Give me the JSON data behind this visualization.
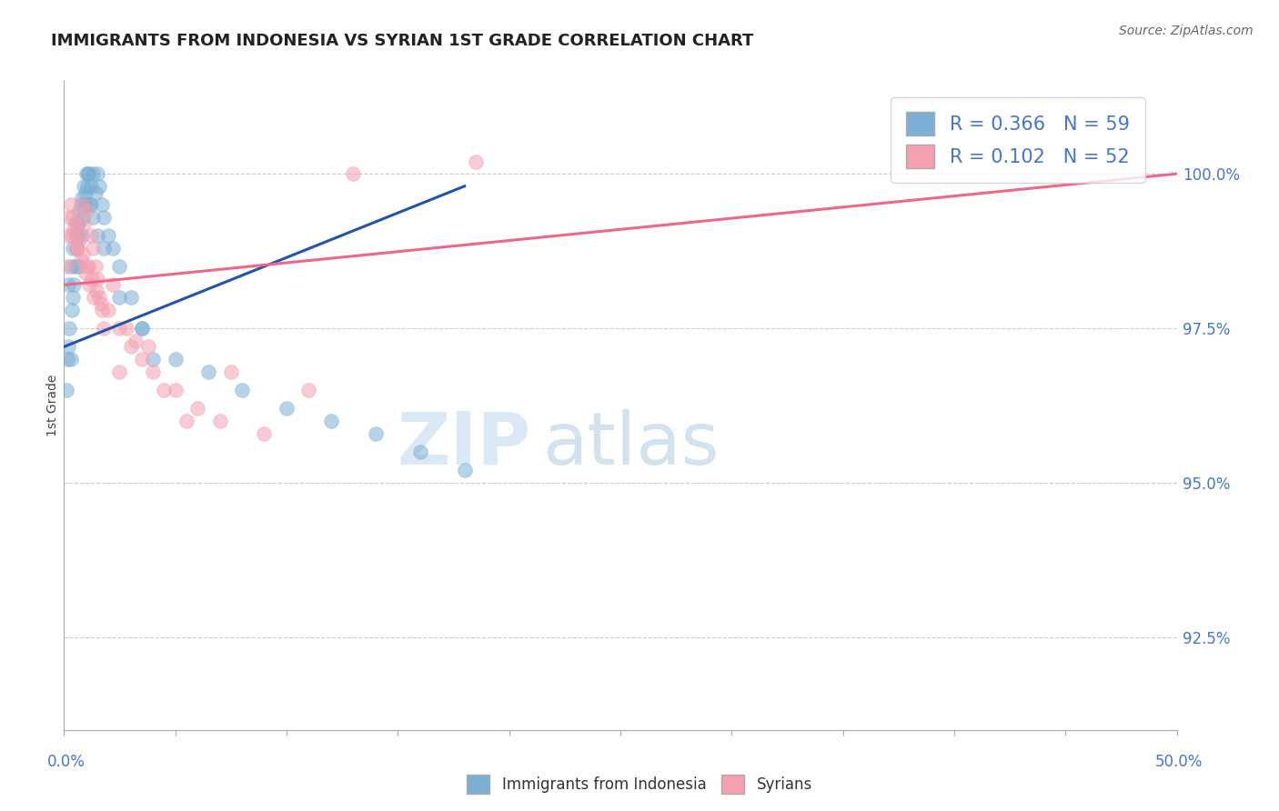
{
  "title": "IMMIGRANTS FROM INDONESIA VS SYRIAN 1ST GRADE CORRELATION CHART",
  "source": "Source: ZipAtlas.com",
  "ylabel": "1st Grade",
  "ylabel_right_values": [
    100.0,
    97.5,
    95.0,
    92.5
  ],
  "xmin": 0.0,
  "xmax": 50.0,
  "ymin": 91.0,
  "ymax": 101.5,
  "R_indonesia": 0.366,
  "N_indonesia": 59,
  "R_syrian": 0.102,
  "N_syrian": 52,
  "color_indonesia": "#7bafd4",
  "color_syrian": "#f4a0b0",
  "trendline_indonesia_color": "#2255aa",
  "trendline_syrian_color": "#ee6688",
  "watermark_zip": "ZIP",
  "watermark_atlas": "atlas",
  "indonesia_x": [
    0.1,
    0.15,
    0.2,
    0.25,
    0.3,
    0.35,
    0.4,
    0.45,
    0.5,
    0.55,
    0.6,
    0.65,
    0.7,
    0.75,
    0.8,
    0.85,
    0.9,
    0.95,
    1.0,
    1.05,
    1.1,
    1.15,
    1.2,
    1.3,
    1.4,
    1.5,
    1.6,
    1.7,
    1.8,
    2.0,
    2.2,
    2.5,
    3.0,
    3.5,
    4.0,
    0.2,
    0.3,
    0.4,
    0.5,
    0.6,
    0.7,
    0.8,
    0.9,
    1.0,
    1.1,
    1.2,
    1.3,
    1.5,
    1.8,
    2.5,
    3.5,
    5.0,
    6.5,
    8.0,
    10.0,
    12.0,
    14.0,
    16.0,
    18.0
  ],
  "indonesia_y": [
    96.5,
    97.0,
    97.2,
    97.5,
    97.0,
    97.8,
    98.0,
    98.2,
    98.5,
    98.8,
    99.0,
    99.2,
    98.5,
    99.5,
    99.0,
    99.3,
    99.5,
    99.7,
    99.5,
    99.8,
    100.0,
    99.5,
    99.8,
    100.0,
    99.7,
    100.0,
    99.8,
    99.5,
    99.3,
    99.0,
    98.8,
    98.5,
    98.0,
    97.5,
    97.0,
    98.2,
    98.5,
    98.8,
    99.0,
    99.2,
    99.4,
    99.6,
    99.8,
    100.0,
    100.0,
    99.5,
    99.3,
    99.0,
    98.8,
    98.0,
    97.5,
    97.0,
    96.8,
    96.5,
    96.2,
    96.0,
    95.8,
    95.5,
    95.2
  ],
  "syrian_x": [
    0.1,
    0.2,
    0.3,
    0.4,
    0.5,
    0.6,
    0.7,
    0.8,
    0.9,
    1.0,
    1.1,
    1.2,
    1.3,
    1.4,
    1.5,
    1.6,
    1.7,
    1.8,
    2.0,
    2.2,
    2.5,
    3.0,
    3.5,
    4.0,
    5.0,
    0.25,
    0.45,
    0.65,
    0.85,
    1.05,
    1.25,
    1.45,
    1.65,
    2.8,
    3.2,
    0.35,
    0.55,
    0.75,
    0.95,
    1.15,
    1.35,
    4.5,
    6.0,
    7.0,
    9.0,
    13.0,
    18.5,
    2.5,
    3.8,
    5.5,
    7.5,
    11.0
  ],
  "syrian_y": [
    98.5,
    99.0,
    99.5,
    99.3,
    99.2,
    98.8,
    99.0,
    99.5,
    99.2,
    99.4,
    98.5,
    99.0,
    98.8,
    98.5,
    98.3,
    98.0,
    97.8,
    97.5,
    97.8,
    98.2,
    97.5,
    97.2,
    97.0,
    96.8,
    96.5,
    99.3,
    99.1,
    98.9,
    98.7,
    98.5,
    98.3,
    98.1,
    97.9,
    97.5,
    97.3,
    99.0,
    98.8,
    98.6,
    98.4,
    98.2,
    98.0,
    96.5,
    96.2,
    96.0,
    95.8,
    100.0,
    100.2,
    96.8,
    97.2,
    96.0,
    96.8,
    96.5
  ],
  "trendline_indonesia_x0": 0.0,
  "trendline_indonesia_y0": 97.2,
  "trendline_indonesia_x1": 18.0,
  "trendline_indonesia_y1": 99.8,
  "trendline_syrian_x0": 0.0,
  "trendline_syrian_y0": 98.2,
  "trendline_syrian_x1": 50.0,
  "trendline_syrian_y1": 100.0
}
